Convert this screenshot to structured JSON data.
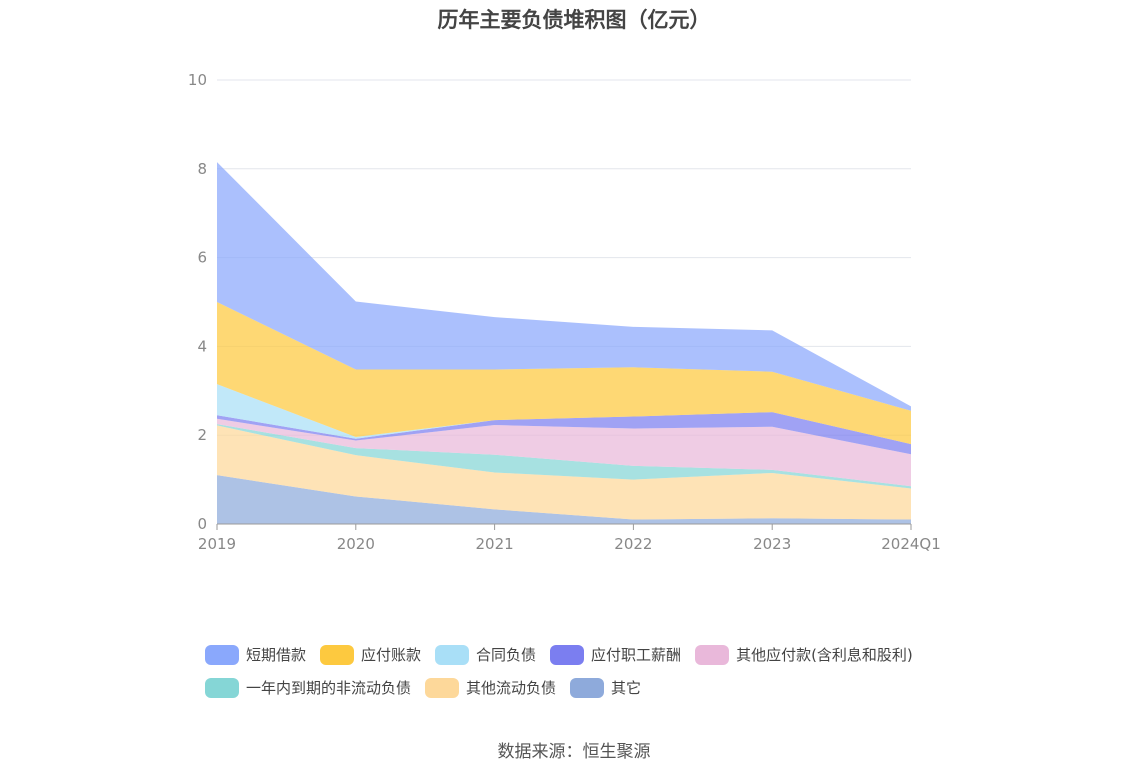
{
  "chart_data": {
    "type": "area",
    "stacked": true,
    "title": "历年主要负债堆积图（亿元）",
    "categories": [
      "2019",
      "2020",
      "2021",
      "2022",
      "2023",
      "2024Q1"
    ],
    "ylim": [
      0,
      10
    ],
    "yticks": [
      0,
      2,
      4,
      6,
      8,
      10
    ],
    "grid": true,
    "legend_position": "bottom",
    "series": [
      {
        "name": "其它",
        "color": "#8eaadb",
        "values": [
          1.1,
          0.62,
          0.33,
          0.1,
          0.13,
          0.1
        ]
      },
      {
        "name": "其他流动负债",
        "color": "#fdd89a",
        "values": [
          1.12,
          0.93,
          0.83,
          0.9,
          1.02,
          0.7
        ]
      },
      {
        "name": "一年内到期的非流动负债",
        "color": "#85d6d6",
        "values": [
          0.03,
          0.16,
          0.4,
          0.31,
          0.07,
          0.05
        ]
      },
      {
        "name": "其他应付款(含利息和股利)",
        "color": "#e9b8da",
        "values": [
          0.12,
          0.17,
          0.67,
          0.84,
          0.97,
          0.72
        ]
      },
      {
        "name": "应付职工薪酬",
        "color": "#7b7ef0",
        "values": [
          0.08,
          0.04,
          0.11,
          0.27,
          0.33,
          0.23
        ]
      },
      {
        "name": "合同负债",
        "color": "#a9dff7",
        "values": [
          0.7,
          0.04,
          0.0,
          0.0,
          0.0,
          0.0
        ]
      },
      {
        "name": "应付账款",
        "color": "#fdc93f",
        "values": [
          1.85,
          1.52,
          1.14,
          1.11,
          0.91,
          0.75
        ]
      },
      {
        "name": "短期借款",
        "color": "#8aa8fc",
        "values": [
          3.15,
          1.53,
          1.18,
          0.91,
          0.93,
          0.1
        ]
      }
    ]
  },
  "legend": {
    "row1": [
      "短期借款",
      "应付账款",
      "合同负债",
      "应付职工薪酬",
      "其他应付款(含利息和股利)"
    ],
    "row2": [
      "一年内到期的非流动负债",
      "其他流动负债",
      "其它"
    ]
  },
  "source": "数据来源：恒生聚源"
}
